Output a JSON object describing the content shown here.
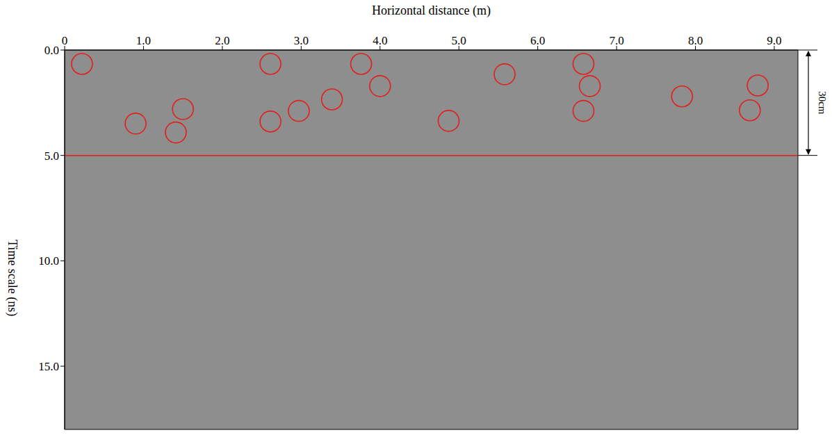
{
  "chart_data": {
    "type": "scatter",
    "x_label": "Horizontal distance (m)",
    "y_label": "Time scale (ns)",
    "xlim": [
      0,
      9.3
    ],
    "ylim": [
      0,
      18
    ],
    "xticks": [
      0,
      {
        "value": 1,
        "label": "1.0"
      },
      {
        "value": 2,
        "label": "2.0"
      },
      {
        "value": 3,
        "label": "3.0"
      },
      {
        "value": 4,
        "label": "4.0"
      },
      {
        "value": 5,
        "label": "5.0"
      },
      {
        "value": 6,
        "label": "6.0"
      },
      {
        "value": 7,
        "label": "7.0"
      },
      {
        "value": 8,
        "label": "8.0"
      },
      {
        "value": 9,
        "label": "9.0"
      }
    ],
    "yticks": [
      {
        "value": 0,
        "label": "0.0"
      },
      {
        "value": 5,
        "label": "5.0"
      },
      {
        "value": 10,
        "label": "10.0"
      },
      {
        "value": 15,
        "label": "15.0"
      }
    ],
    "x": [
      0.22,
      0.9,
      1.5,
      1.41,
      2.61,
      2.61,
      2.97,
      3.39,
      3.76,
      4.0,
      4.87,
      5.58,
      6.58,
      6.66,
      6.58,
      7.83,
      8.79,
      8.69
    ],
    "values": [
      0.66,
      3.49,
      2.8,
      3.91,
      0.66,
      3.39,
      2.89,
      2.34,
      0.66,
      1.71,
      3.36,
      1.15,
      0.66,
      1.71,
      2.89,
      2.2,
      1.68,
      2.86
    ],
    "color": "#e0201b",
    "marker": "circle",
    "grid": false,
    "annotations": [
      {
        "type": "hline",
        "y": 5,
        "color": "#e0201b"
      },
      {
        "text": "30cm",
        "y_range": [
          0,
          5
        ]
      }
    ]
  }
}
